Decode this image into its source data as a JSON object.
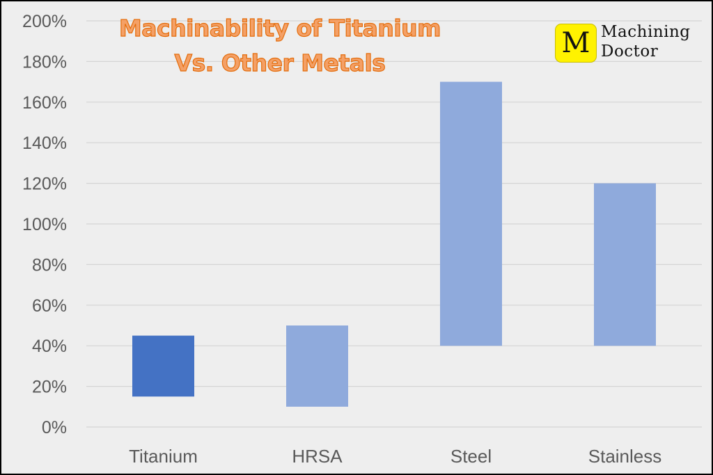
{
  "chart_data": {
    "type": "bar",
    "subtype": "floating-range",
    "title_lines": [
      "Machinability of Titanium",
      "Vs. Other Metals"
    ],
    "categories": [
      "Titanium",
      "HRSA",
      "Steel",
      "Stainless"
    ],
    "ranges": [
      {
        "category": "Titanium",
        "low": 15,
        "high": 45
      },
      {
        "category": "HRSA",
        "low": 10,
        "high": 50
      },
      {
        "category": "Steel",
        "low": 40,
        "high": 170
      },
      {
        "category": "Stainless",
        "low": 40,
        "high": 120
      }
    ],
    "highlight_category": "Titanium",
    "colors": {
      "highlight": "#4472c4",
      "default": "#8faadc",
      "title_fill": "#f4a066",
      "title_stroke": "#e46c0a"
    },
    "yticks": [
      "0%",
      "20%",
      "40%",
      "60%",
      "80%",
      "100%",
      "120%",
      "140%",
      "160%",
      "180%",
      "200%"
    ],
    "ylim": [
      0,
      200
    ],
    "ystep": 20,
    "grid": true,
    "legend": "none"
  },
  "logo": {
    "letter": "M",
    "lines": [
      "Machining",
      "Doctor"
    ],
    "badge_color": "#fff200"
  }
}
